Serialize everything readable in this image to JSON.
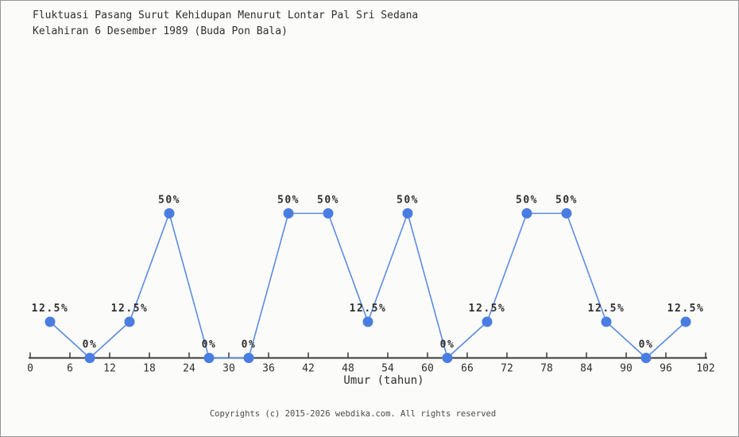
{
  "page": {
    "footer": "Copyrights (c) 2015-2026 webdika.com. All rights reserved"
  },
  "chart_data": {
    "type": "line",
    "title": "Fluktuasi Pasang Surut Kehidupan Menurut Lontar Pal Sri Sedana",
    "subtitle": "Kelahiran 6 Desember 1989 (Buda Pon Bala)",
    "xlabel": "Umur (tahun)",
    "ylabel": "",
    "x": [
      3,
      9,
      15,
      21,
      27,
      33,
      39,
      45,
      51,
      57,
      63,
      69,
      75,
      81,
      87,
      93,
      99
    ],
    "values": [
      12.5,
      0,
      12.5,
      50,
      0,
      0,
      50,
      50,
      12.5,
      50,
      0,
      12.5,
      50,
      50,
      12.5,
      0,
      12.5
    ],
    "point_labels": [
      "12.5%",
      "0%",
      "12.5%",
      "50%",
      "0%",
      "0%",
      "50%",
      "50%",
      "12.5%",
      "50%",
      "0%",
      "12.5%",
      "50%",
      "50%",
      "12.5%",
      "0%",
      "12.5%"
    ],
    "x_ticks": [
      0,
      6,
      12,
      18,
      24,
      30,
      36,
      42,
      48,
      54,
      60,
      66,
      72,
      78,
      84,
      90,
      96,
      102
    ],
    "xlim": [
      0,
      102
    ],
    "ylim": [
      0,
      100
    ],
    "grid": false,
    "legend": "none",
    "colors": {
      "line": "#5b8ce0",
      "marker": "#4a7de1",
      "axis": "#3a3a3a",
      "text": "#2f2f2f"
    }
  }
}
